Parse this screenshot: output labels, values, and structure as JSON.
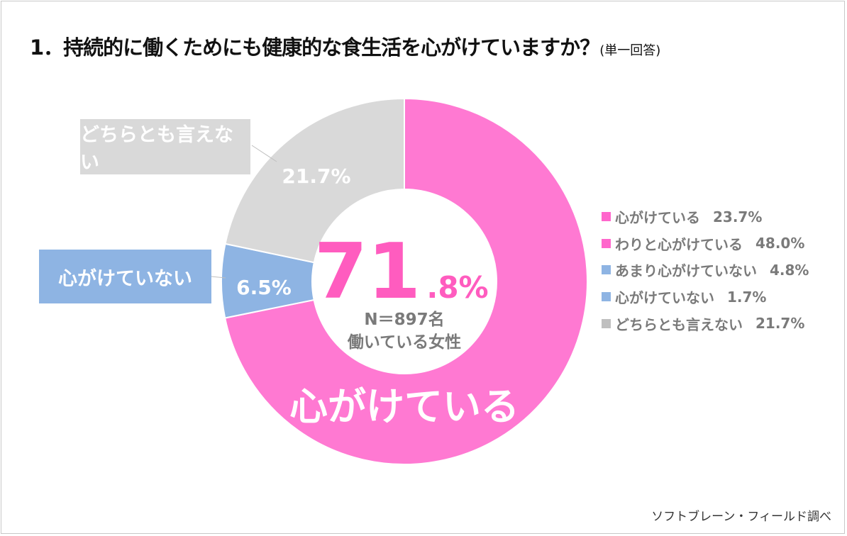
{
  "title": {
    "main": "1．持続的に働くためにも健康的な食生活を心がけていますか？",
    "note": "(単一回答)"
  },
  "chart_data": {
    "type": "pie",
    "variant": "donut",
    "categories": [
      "心がけている",
      "心がけていない",
      "どちらとも言えない"
    ],
    "values": [
      71.8,
      6.5,
      21.7
    ],
    "value_labels": [
      "71.8%",
      "6.5%",
      "21.7%"
    ],
    "colors": [
      "#ff79d2",
      "#8eb4e3",
      "#d9d9d9"
    ],
    "center": {
      "big": "71",
      ".small": ".8%",
      "small": ".8%",
      "n": "N＝897名",
      "group": "働いている女性",
      "color": "#ff5cbf"
    },
    "legend": {
      "placement": "right",
      "items": [
        {
          "label": "心がけている",
          "value": "23.7%",
          "color": "#ff66cc"
        },
        {
          "label": "わりと心がけている",
          "value": "48.0%",
          "color": "#ff66cc"
        },
        {
          "label": "あまり心がけていない",
          "value": "4.8%",
          "color": "#8eb4e3"
        },
        {
          "label": "心がけていない",
          "value": "1.7%",
          "color": "#8eb4e3"
        },
        {
          "label": "どちらとも言えない",
          "value": "21.7%",
          "color": "#bfbfbf"
        }
      ]
    }
  },
  "source": "ソフトブレーン・フィールド調べ"
}
